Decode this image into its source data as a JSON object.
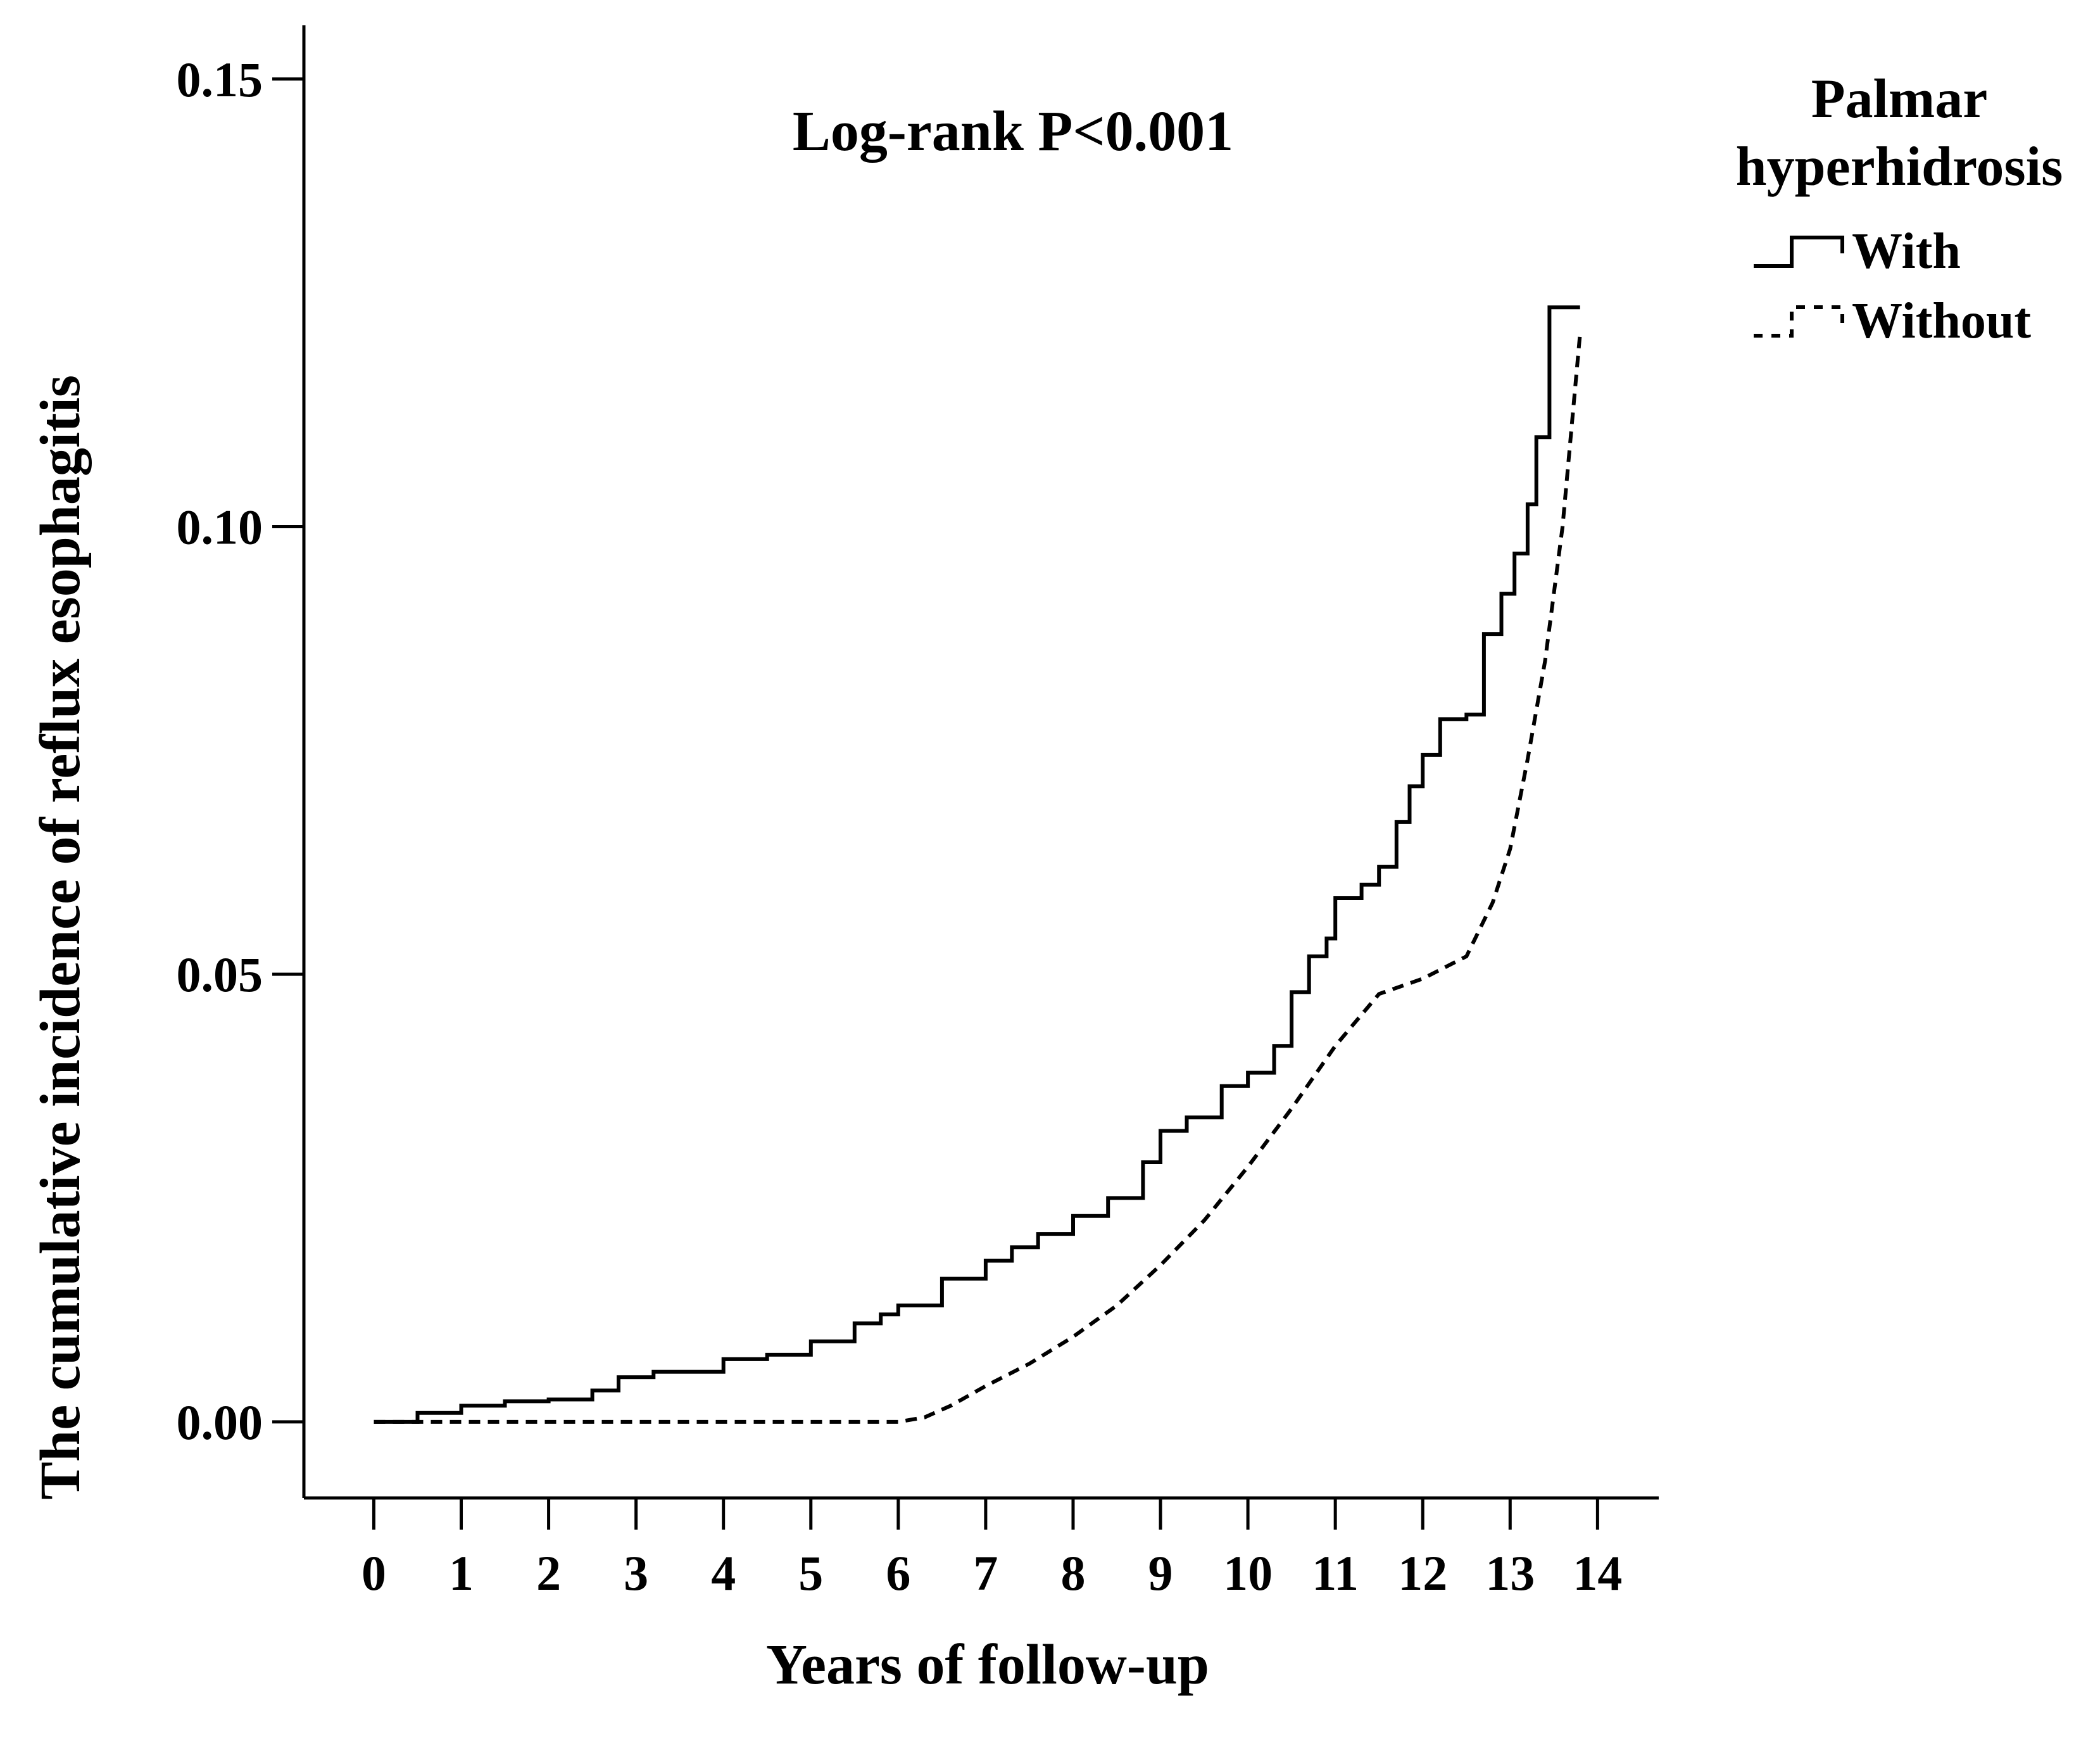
{
  "chart_data": {
    "type": "line",
    "title": "",
    "annotation": "Log-rank P<0.001",
    "xlabel": "Years of follow-up",
    "ylabel": "The cumulative incidence of reflux esophagitis",
    "xlim": [
      -0.8,
      14.7
    ],
    "ylim": [
      -0.0085,
      0.156
    ],
    "xticks": [
      "0",
      "1",
      "2",
      "3",
      "4",
      "5",
      "6",
      "7",
      "8",
      "9",
      "10",
      "11",
      "12",
      "13",
      "14"
    ],
    "yticks": [
      "0.00",
      "0.05",
      "0.10",
      "0.15"
    ],
    "grid": false,
    "legend": {
      "title": [
        "Palmar",
        "hyperhidrosis"
      ],
      "position": "top-right, outside plot"
    },
    "series": [
      {
        "name": "With",
        "line_style": "solid",
        "step": true,
        "color": "#000000",
        "points": [
          [
            0,
            0
          ],
          [
            0.5,
            0.001
          ],
          [
            1.0,
            0.0018
          ],
          [
            1.5,
            0.0023
          ],
          [
            2.0,
            0.0025
          ],
          [
            2.5,
            0.0035
          ],
          [
            2.8,
            0.005
          ],
          [
            3.2,
            0.0056
          ],
          [
            4.0,
            0.007
          ],
          [
            4.5,
            0.0075
          ],
          [
            5.0,
            0.009
          ],
          [
            5.5,
            0.011
          ],
          [
            5.8,
            0.012
          ],
          [
            6.0,
            0.013
          ],
          [
            6.5,
            0.016
          ],
          [
            7.0,
            0.018
          ],
          [
            7.3,
            0.0195
          ],
          [
            7.6,
            0.021
          ],
          [
            8.0,
            0.023
          ],
          [
            8.4,
            0.025
          ],
          [
            8.8,
            0.029
          ],
          [
            9.0,
            0.0325
          ],
          [
            9.3,
            0.034
          ],
          [
            9.7,
            0.0375
          ],
          [
            10.0,
            0.039
          ],
          [
            10.3,
            0.042
          ],
          [
            10.5,
            0.048
          ],
          [
            10.7,
            0.052
          ],
          [
            10.9,
            0.054
          ],
          [
            11.0,
            0.0585
          ],
          [
            11.3,
            0.06
          ],
          [
            11.5,
            0.062
          ],
          [
            11.7,
            0.067
          ],
          [
            11.85,
            0.071
          ],
          [
            12.0,
            0.0745
          ],
          [
            12.2,
            0.0785
          ],
          [
            12.5,
            0.079
          ],
          [
            12.7,
            0.088
          ],
          [
            12.9,
            0.0925
          ],
          [
            13.05,
            0.097
          ],
          [
            13.2,
            0.1025
          ],
          [
            13.3,
            0.11
          ],
          [
            13.45,
            0.1245
          ],
          [
            13.8,
            0.1245
          ]
        ]
      },
      {
        "name": "Without",
        "line_style": "dashed",
        "step": false,
        "color": "#000000",
        "points": [
          [
            0,
            0
          ],
          [
            6.0,
            0
          ],
          [
            6.3,
            0.0005
          ],
          [
            6.6,
            0.0018
          ],
          [
            7.0,
            0.004
          ],
          [
            7.5,
            0.0065
          ],
          [
            8.0,
            0.0095
          ],
          [
            8.5,
            0.013
          ],
          [
            9.0,
            0.0175
          ],
          [
            9.5,
            0.0225
          ],
          [
            10.0,
            0.0285
          ],
          [
            10.5,
            0.035
          ],
          [
            11.0,
            0.042
          ],
          [
            11.5,
            0.0478
          ],
          [
            12.0,
            0.0495
          ],
          [
            12.5,
            0.052
          ],
          [
            12.8,
            0.058
          ],
          [
            13.0,
            0.064
          ],
          [
            13.2,
            0.074
          ],
          [
            13.4,
            0.085
          ],
          [
            13.6,
            0.1
          ],
          [
            13.8,
            0.1215
          ]
        ]
      }
    ]
  }
}
